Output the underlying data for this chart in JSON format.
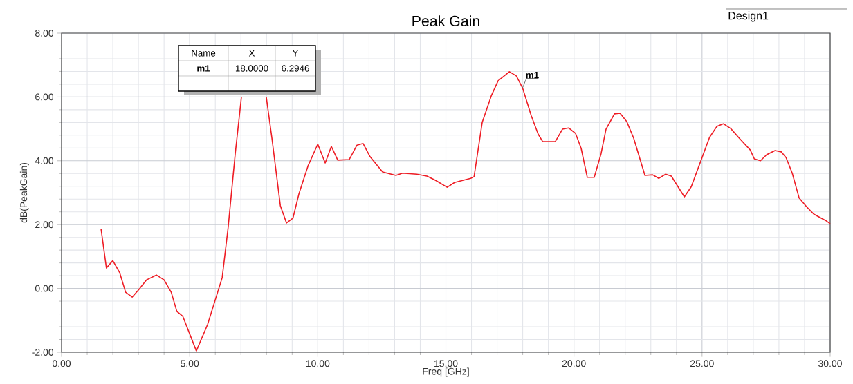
{
  "chart_data": {
    "type": "line",
    "title": "Peak Gain",
    "xlabel": "Freq [GHz]",
    "ylabel": "dB(PeakGain)",
    "x": [
      1.54,
      1.75,
      2.0,
      2.27,
      2.5,
      2.76,
      3.02,
      3.32,
      3.7,
      4.0,
      4.28,
      4.5,
      4.73,
      5.26,
      5.7,
      6.27,
      6.5,
      6.78,
      7.02,
      7.5,
      7.99,
      8.21,
      8.54,
      8.78,
      9.03,
      9.27,
      9.62,
      10.0,
      10.29,
      10.53,
      10.78,
      11.23,
      11.53,
      11.77,
      12.04,
      12.53,
      13.05,
      13.31,
      13.86,
      14.26,
      14.59,
      15.05,
      15.34,
      15.97,
      16.1,
      16.42,
      16.78,
      17.04,
      17.48,
      17.75,
      18.0,
      18.33,
      18.6,
      18.78,
      19.27,
      19.55,
      19.79,
      20.06,
      20.28,
      20.52,
      20.79,
      21.06,
      21.25,
      21.58,
      21.8,
      22.06,
      22.33,
      22.77,
      23.07,
      23.31,
      23.58,
      23.8,
      24.31,
      24.58,
      24.93,
      25.29,
      25.58,
      25.83,
      26.12,
      26.45,
      26.88,
      27.04,
      27.28,
      27.52,
      27.85,
      28.09,
      28.28,
      28.52,
      28.79,
      29.09,
      29.36,
      29.82,
      30.0
    ],
    "series": [
      {
        "color": "#ee1c24",
        "values": [
          1.87,
          0.64,
          0.87,
          0.49,
          -0.12,
          -0.27,
          -0.03,
          0.27,
          0.42,
          0.27,
          -0.12,
          -0.72,
          -0.87,
          -1.96,
          -1.13,
          0.34,
          1.9,
          4.23,
          6.0,
          null,
          6.0,
          4.71,
          2.59,
          2.05,
          2.2,
          2.98,
          3.84,
          4.52,
          3.93,
          4.45,
          4.02,
          4.04,
          4.49,
          4.54,
          4.13,
          3.65,
          3.54,
          3.61,
          3.58,
          3.52,
          3.39,
          3.17,
          3.32,
          3.45,
          3.5,
          5.21,
          6.05,
          6.51,
          6.79,
          6.66,
          6.27,
          5.42,
          4.84,
          4.6,
          4.6,
          4.99,
          5.03,
          4.86,
          4.39,
          3.48,
          3.48,
          4.23,
          4.99,
          5.47,
          5.49,
          5.23,
          4.71,
          3.54,
          3.56,
          3.45,
          3.58,
          3.52,
          2.87,
          3.19,
          3.95,
          4.73,
          5.08,
          5.16,
          5.01,
          4.71,
          4.34,
          4.06,
          4.0,
          4.19,
          4.32,
          4.28,
          4.1,
          3.61,
          2.83,
          2.55,
          2.33,
          2.13,
          2.03
        ]
      }
    ],
    "xlim": [
      0,
      30
    ],
    "ylim": [
      -2,
      8
    ],
    "xticks": [
      {
        "value": 0,
        "label": "0.00"
      },
      {
        "value": 5,
        "label": "5.00"
      },
      {
        "value": 10,
        "label": "10.00"
      },
      {
        "value": 15,
        "label": "15.00"
      },
      {
        "value": 20,
        "label": "20.00"
      },
      {
        "value": 25,
        "label": "25.00"
      },
      {
        "value": 30,
        "label": "30.00"
      }
    ],
    "yticks": [
      {
        "value": -2,
        "label": "-2.00"
      },
      {
        "value": 0,
        "label": "0.00"
      },
      {
        "value": 2,
        "label": "2.00"
      },
      {
        "value": 4,
        "label": "4.00"
      },
      {
        "value": 6,
        "label": "6.00"
      },
      {
        "value": 8,
        "label": "8.00"
      }
    ],
    "grid": true,
    "marker": "none",
    "line_style": "solid",
    "annotations": [
      "Design1",
      "Name",
      "X",
      "Y",
      "m1",
      "18.0000",
      "6.2946",
      {
        "text": "m1",
        "x": 18.0,
        "y": 6.2946
      }
    ]
  }
}
